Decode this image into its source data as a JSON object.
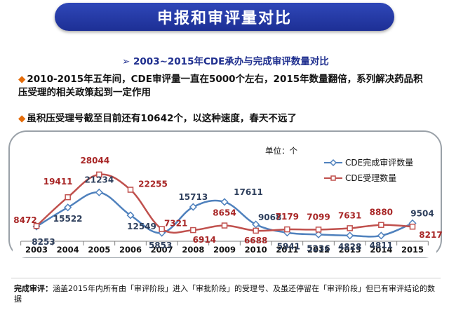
{
  "banner": {
    "title": "申报和审评量对比"
  },
  "subtitle": "➢ 2003~2015年CDE承办与完成审评数量对比",
  "bullets": [
    {
      "mark": "◆",
      "text": "2010-2015年五年间，CDE审评量一直在5000个左右，2015年数量翻倍，系列解决药品积压受理的相关政策起到一定作用"
    },
    {
      "mark": "◆",
      "text": "虽积压受理号截至目前还有10642个，以这种速度，春天不远了"
    }
  ],
  "footnote": {
    "label": "完成审评：",
    "text": "涵盖2015年内所有由「审评阶段」进入「审批阶段」的受理号、及虽还停留在「审评阶段」但已有审评结论的数据"
  },
  "chart_data": {
    "type": "line",
    "unit": "单位：个",
    "categories": [
      "2003",
      "2004",
      "2005",
      "2006",
      "2007",
      "2008",
      "2009",
      "2010",
      "2011",
      "2012",
      "2013",
      "2014",
      "2015"
    ],
    "series": [
      {
        "name": "CDE完成审评数量",
        "color": "#4f81bd",
        "values": [
          8253,
          15522,
          21234,
          12549,
          5853,
          15713,
          17611,
          9068,
          5941,
          5236,
          4828,
          4811,
          9504
        ]
      },
      {
        "name": "CDE受理数量",
        "color": "#c0504d",
        "values": [
          8472,
          19411,
          28044,
          22255,
          7321,
          6914,
          8654,
          6688,
          7179,
          7099,
          7631,
          8880,
          8217
        ]
      }
    ],
    "ylim": [
      0,
      32000
    ],
    "grid": false,
    "legend": "top-right",
    "label_color_primary": "#2e3f5c",
    "label_color_secondary": "#a82626"
  }
}
